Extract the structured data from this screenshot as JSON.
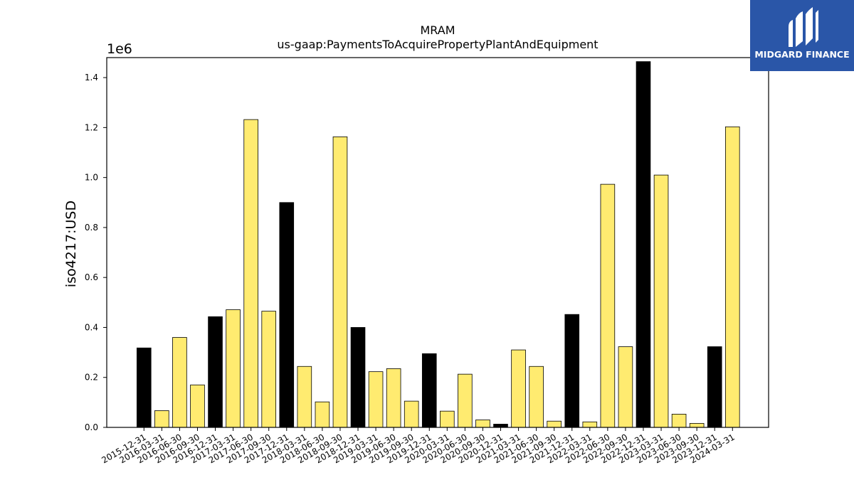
{
  "brand": {
    "name": "MIDGARD FINANCE",
    "logo_icon": "midgard-m-logo-icon",
    "background": "#2a56a8"
  },
  "chart_data": {
    "type": "bar",
    "title": "MRAM",
    "subtitle": "us-gaap:PaymentsToAcquirePropertyPlantAndEquipment",
    "xlabel": "",
    "ylabel": "iso4217:USD",
    "y_multiplier_label": "1e6",
    "ylim": [
      0,
      1.48
    ],
    "yticks": [
      "0.0",
      "0.2",
      "0.4",
      "0.6",
      "0.8",
      "1.0",
      "1.2",
      "1.4"
    ],
    "grid": false,
    "colors": {
      "annual": "#000000",
      "quarterly": "#ffeb70",
      "edge": "#000000"
    },
    "categories": [
      "2015-12-31",
      "2016-03-31",
      "2016-06-30",
      "2016-09-30",
      "2016-12-31",
      "2017-03-31",
      "2017-06-30",
      "2017-09-30",
      "2017-12-31",
      "2018-03-31",
      "2018-06-30",
      "2018-09-30",
      "2018-12-31",
      "2019-03-31",
      "2019-06-30",
      "2019-09-30",
      "2019-12-31",
      "2020-03-31",
      "2020-06-30",
      "2020-09-30",
      "2020-12-31",
      "2021-03-31",
      "2021-06-30",
      "2021-09-30",
      "2021-12-31",
      "2022-03-31",
      "2022-06-30",
      "2022-09-30",
      "2022-12-31",
      "2023-03-31",
      "2023-06-30",
      "2023-09-30",
      "2023-12-31",
      "2024-03-31"
    ],
    "values": [
      0.318,
      0.067,
      0.36,
      0.17,
      0.443,
      0.471,
      1.232,
      0.465,
      0.9,
      0.244,
      0.102,
      1.163,
      0.4,
      0.223,
      0.235,
      0.105,
      0.295,
      0.065,
      0.213,
      0.03,
      0.013,
      0.31,
      0.244,
      0.025,
      0.452,
      0.022,
      0.973,
      0.323,
      1.464,
      1.01,
      0.053,
      0.016,
      0.323,
      1.203
    ],
    "bar_kind": [
      "annual",
      "quarterly",
      "quarterly",
      "quarterly",
      "annual",
      "quarterly",
      "quarterly",
      "quarterly",
      "annual",
      "quarterly",
      "quarterly",
      "quarterly",
      "annual",
      "quarterly",
      "quarterly",
      "quarterly",
      "annual",
      "quarterly",
      "quarterly",
      "quarterly",
      "annual",
      "quarterly",
      "quarterly",
      "quarterly",
      "annual",
      "quarterly",
      "quarterly",
      "quarterly",
      "annual",
      "quarterly",
      "quarterly",
      "quarterly",
      "annual",
      "quarterly"
    ]
  }
}
